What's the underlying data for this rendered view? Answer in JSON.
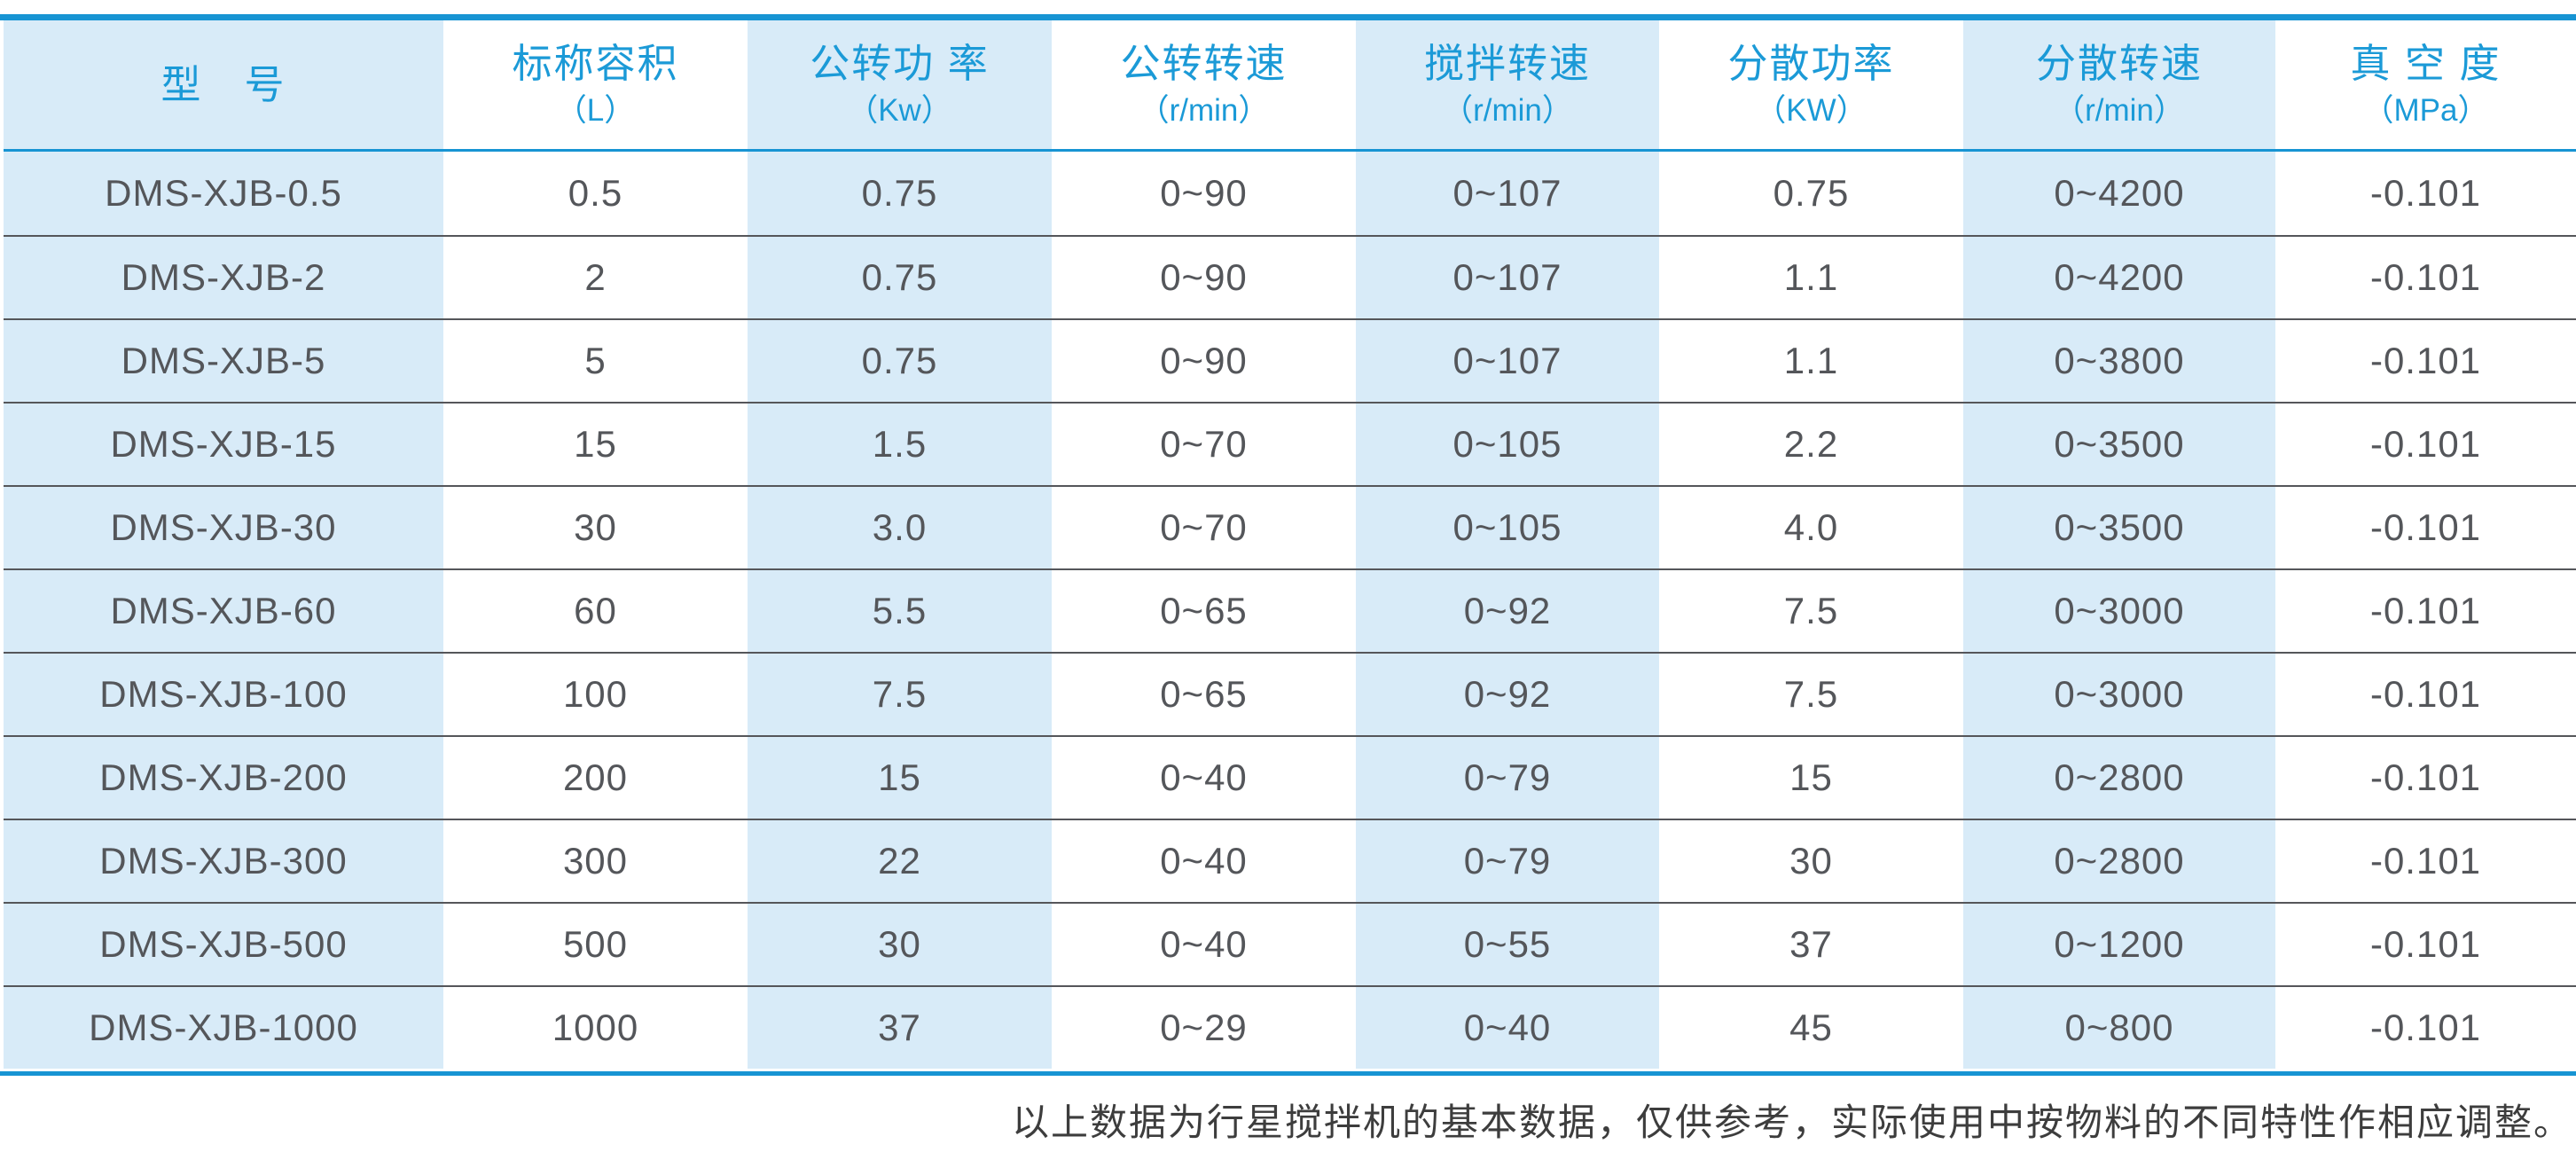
{
  "table": {
    "columns": [
      {
        "title": "型　号",
        "unit": ""
      },
      {
        "title": "标称容积",
        "unit": "（L）"
      },
      {
        "title": "公转功 率",
        "unit": "（Kw）"
      },
      {
        "title": "公转转速",
        "unit": "（r/min）"
      },
      {
        "title": "搅拌转速",
        "unit": "（r/min）"
      },
      {
        "title": "分散功率",
        "unit": "（KW）"
      },
      {
        "title": "分散转速",
        "unit": "（r/min）"
      },
      {
        "title": "真 空 度",
        "unit": "（MPa）"
      }
    ],
    "rows": [
      [
        "DMS-XJB-0.5",
        "0.5",
        "0.75",
        "0~90",
        "0~107",
        "0.75",
        "0~4200",
        "-0.101"
      ],
      [
        "DMS-XJB-2",
        "2",
        "0.75",
        "0~90",
        "0~107",
        "1.1",
        "0~4200",
        "-0.101"
      ],
      [
        "DMS-XJB-5",
        "5",
        "0.75",
        "0~90",
        "0~107",
        "1.1",
        "0~3800",
        "-0.101"
      ],
      [
        "DMS-XJB-15",
        "15",
        "1.5",
        "0~70",
        "0~105",
        "2.2",
        "0~3500",
        "-0.101"
      ],
      [
        "DMS-XJB-30",
        "30",
        "3.0",
        "0~70",
        "0~105",
        "4.0",
        "0~3500",
        "-0.101"
      ],
      [
        "DMS-XJB-60",
        "60",
        "5.5",
        "0~65",
        "0~92",
        "7.5",
        "0~3000",
        "-0.101"
      ],
      [
        "DMS-XJB-100",
        "100",
        "7.5",
        "0~65",
        "0~92",
        "7.5",
        "0~3000",
        "-0.101"
      ],
      [
        "DMS-XJB-200",
        "200",
        "15",
        "0~40",
        "0~79",
        "15",
        "0~2800",
        "-0.101"
      ],
      [
        "DMS-XJB-300",
        "300",
        "22",
        "0~40",
        "0~79",
        "30",
        "0~2800",
        "-0.101"
      ],
      [
        "DMS-XJB-500",
        "500",
        "30",
        "0~40",
        "0~55",
        "37",
        "0~1200",
        "-0.101"
      ],
      [
        "DMS-XJB-1000",
        "1000",
        "37",
        "0~29",
        "0~40",
        "45",
        "0~800",
        "-0.101"
      ]
    ],
    "shaded_column_indexes": [
      0,
      2,
      4,
      6
    ]
  },
  "footer": {
    "note": "以上数据为行星搅拌机的基本数据，仅供参考，实际使用中按物料的不同特性作相应调整。"
  },
  "colors": {
    "accent_blue": "#1794d3",
    "header_text_blue": "#1b9ad7",
    "stripe_light_blue": "#d8ebf8",
    "body_text": "#54565a",
    "row_separator": "#55565a"
  }
}
